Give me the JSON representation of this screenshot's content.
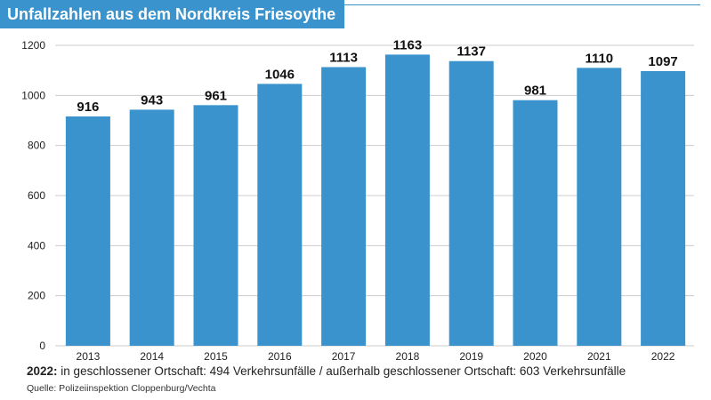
{
  "header": {
    "title": "Unfallzahlen aus dem Nordkreis Friesoythe"
  },
  "chart_data": {
    "type": "bar",
    "title": "Unfallzahlen aus dem Nordkreis Friesoythe",
    "xlabel": "",
    "ylabel": "",
    "categories": [
      "2013",
      "2014",
      "2015",
      "2016",
      "2017",
      "2018",
      "2019",
      "2020",
      "2021",
      "2022"
    ],
    "values": [
      916,
      943,
      961,
      1046,
      1113,
      1163,
      1137,
      981,
      1110,
      1097
    ],
    "data_labels": [
      "916",
      "943",
      "961",
      "1046",
      "1113",
      "1163",
      "1137",
      "981",
      "1110",
      "1097"
    ],
    "ylim": [
      0,
      1200
    ],
    "yticks": [
      0,
      200,
      400,
      600,
      800,
      1000,
      1200
    ],
    "ytick_labels": [
      "0",
      "200",
      "400",
      "600",
      "800",
      "1000",
      "1200"
    ],
    "grid": "horizontal",
    "legend": "none",
    "bar_color": "#3a93cc",
    "grid_color": "#cccccc"
  },
  "footnote": {
    "year_label": "2022:",
    "text": "in geschlossener Ortschaft: 494 Verkehrsunfälle / außerhalb geschlossener Ortschaft: 603 Verkehrsunfälle"
  },
  "source": {
    "text": "Quelle: Polizeiinspektion Cloppenburg/Vechta"
  }
}
